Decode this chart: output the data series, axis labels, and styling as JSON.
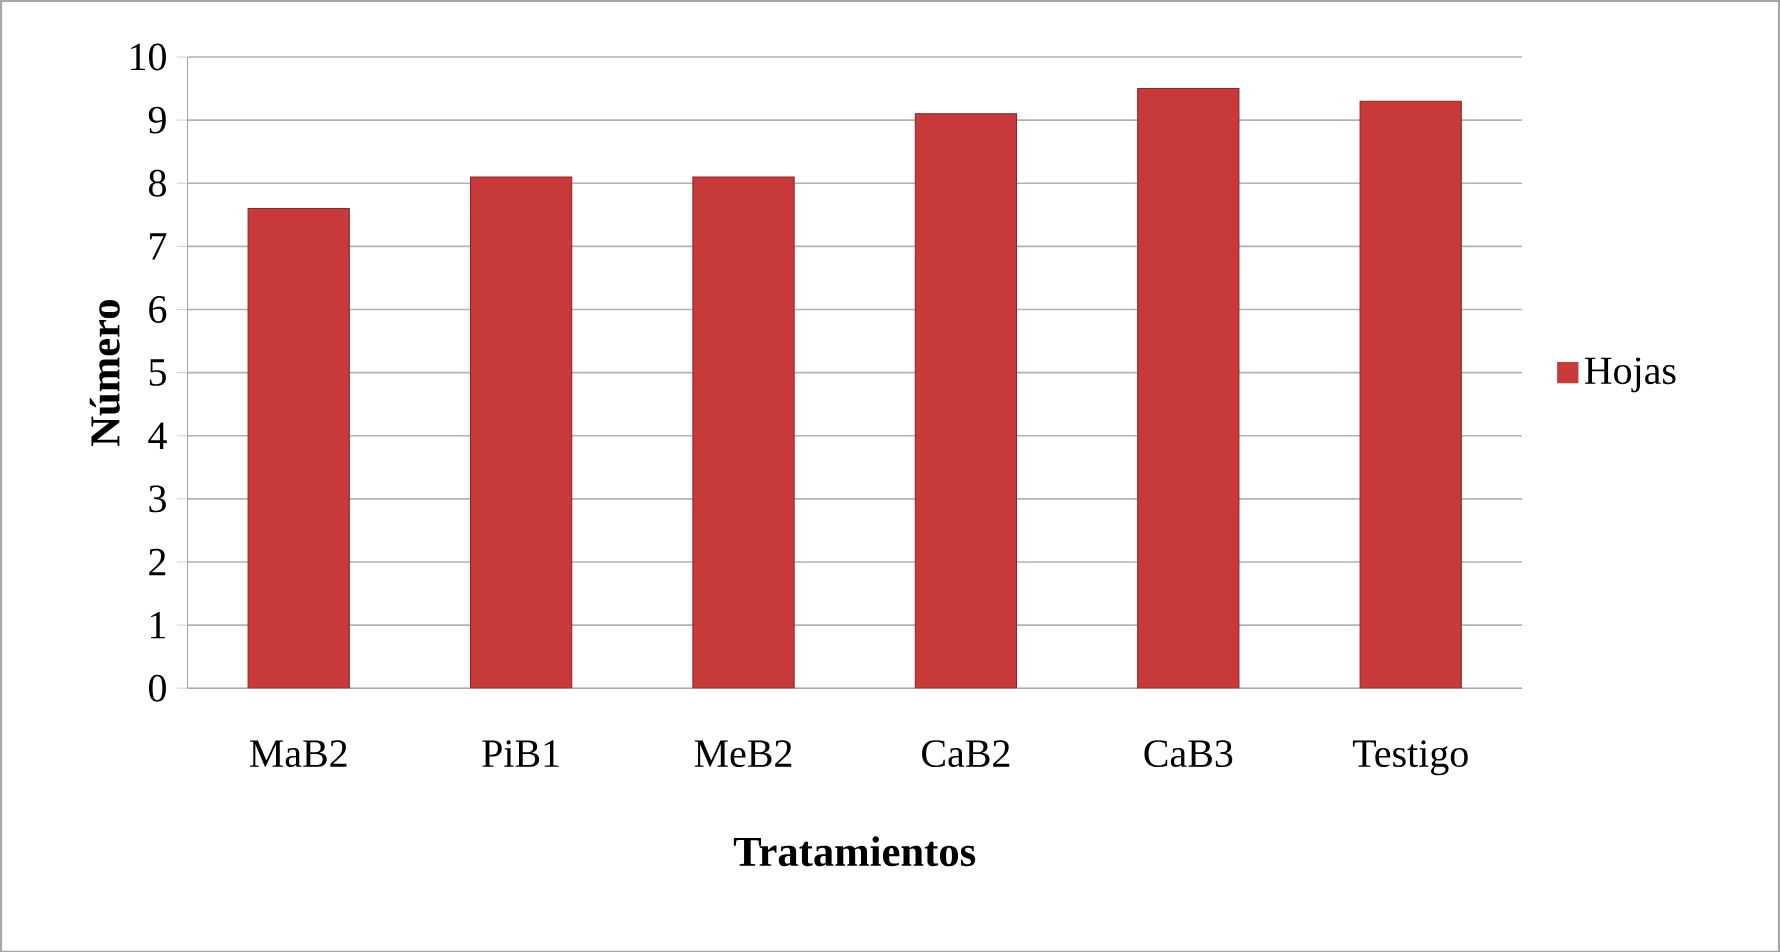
{
  "chart_data": {
    "type": "bar",
    "xlabel": "Tratamientos",
    "ylabel": "Número",
    "categories": [
      "MaB2",
      "PiB1",
      "MeB2",
      "CaB2",
      "CaB3",
      "Testigo"
    ],
    "series": [
      {
        "name": "Hojas",
        "color": "#c8393a",
        "values": [
          7.6,
          8.1,
          8.1,
          9.1,
          9.5,
          9.3
        ]
      }
    ],
    "ylim": [
      0,
      10
    ],
    "yticks": [
      0,
      1,
      2,
      3,
      4,
      5,
      6,
      7,
      8,
      9,
      10
    ],
    "grid": "y",
    "legend": "right"
  }
}
